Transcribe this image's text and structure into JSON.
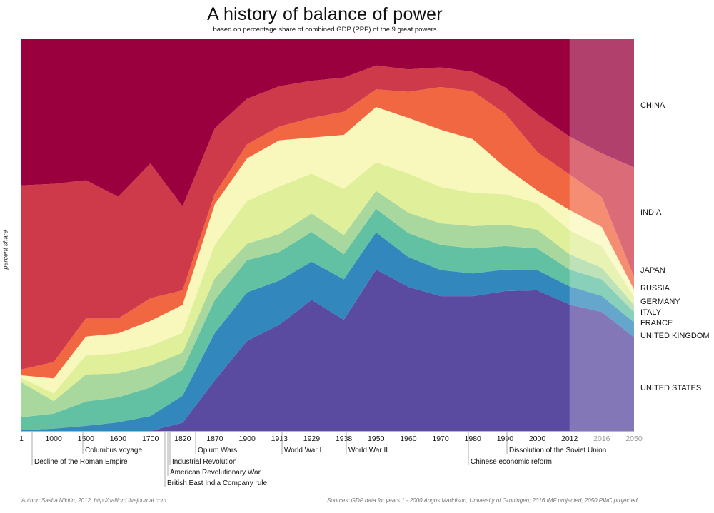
{
  "title": "A history of  balance of power",
  "subtitle": "based on percentage share of combined GDP (PPP) of the 9 great powers",
  "footer": {
    "author": "Author:  Sasha Nikitin, 2012, http://nalilord.livejournal.com",
    "sources": "Sources:  GDP data for years 1 - 2000 Angus Maddison, University of Groningen;  2016 IMF projected;  2050 PWC projected"
  },
  "chart_data": {
    "type": "area",
    "stacked": true,
    "normalized_percent": true,
    "title": "A history of  balance of power",
    "subtitle": "based on percentage share of combined GDP (PPP) of the 9 great powers",
    "xlabel": "",
    "ylabel": "percent share",
    "ylim": [
      0,
      100
    ],
    "grid": false,
    "legend": "right (labels beside each band)",
    "categories": [
      "1",
      "1000",
      "1500",
      "1600",
      "1700",
      "1820",
      "1870",
      "1900",
      "1913",
      "1929",
      "1938",
      "1950",
      "1960",
      "1970",
      "1980",
      "1990",
      "2000",
      "2012",
      "2016",
      "2050"
    ],
    "projected_categories": [
      "2016",
      "2050"
    ],
    "projected_shading_from": "2012",
    "series": [
      {
        "name": "UNITED STATES",
        "color": "#5a4aa0",
        "values": [
          0,
          0,
          0,
          0,
          0,
          2.1,
          12.9,
          23.0,
          27.1,
          33.5,
          28.4,
          41.2,
          36.8,
          34.4,
          34.4,
          35.7,
          35.9,
          32.3,
          30.4,
          23.9
        ]
      },
      {
        "name": "UNITED KINGDOM",
        "color": "#3288bd",
        "values": [
          0.2,
          0.6,
          1.3,
          2.2,
          3.8,
          6.9,
          12.1,
          12.4,
          11.3,
          9.7,
          10.3,
          9.5,
          7.6,
          6.7,
          5.8,
          5.5,
          5.2,
          4.6,
          4.1,
          3.8
        ]
      },
      {
        "name": "FRANCE",
        "color": "#62c0a3",
        "values": [
          3.3,
          3.8,
          6.2,
          6.4,
          7.3,
          6.6,
          8.5,
          8.2,
          7.3,
          7.6,
          6.4,
          6.0,
          6.1,
          6.4,
          6.4,
          6.0,
          5.5,
          4.3,
          4.2,
          2.7
        ]
      },
      {
        "name": "ITALY",
        "color": "#a9d89f",
        "values": [
          8.9,
          3.2,
          6.9,
          6.1,
          5.6,
          4.4,
          5.5,
          4.2,
          4.6,
          4.7,
          4.9,
          4.6,
          5.2,
          5.5,
          5.7,
          5.5,
          4.8,
          3.9,
          3.0,
          1.8
        ]
      },
      {
        "name": "GERMANY",
        "color": "#e0ef9a",
        "values": [
          1.1,
          2.0,
          4.9,
          5.1,
          5.0,
          5.1,
          8.6,
          10.9,
          12.1,
          10.2,
          11.8,
          7.3,
          10.0,
          9.3,
          8.5,
          7.7,
          6.7,
          6.1,
          5.5,
          2.1
        ]
      },
      {
        "name": "RUSSIA",
        "color": "#f8f8bc",
        "values": [
          0.7,
          3.8,
          4.8,
          5.1,
          6.4,
          7.1,
          10.3,
          10.9,
          11.8,
          9.2,
          13.8,
          14.1,
          14.2,
          14.6,
          13.7,
          6.9,
          3.3,
          5.2,
          4.9,
          1.8
        ]
      },
      {
        "name": "JAPAN",
        "color": "#f06742",
        "values": [
          1.5,
          4.2,
          4.6,
          3.8,
          5.8,
          3.7,
          2.7,
          3.6,
          3.5,
          5.0,
          5.9,
          4.5,
          6.7,
          10.9,
          12.2,
          13.7,
          9.8,
          9.1,
          7.6,
          3.3
        ]
      },
      {
        "name": "INDIA",
        "color": "#cf3a4a",
        "values": [
          47.0,
          45.5,
          35.3,
          31.1,
          34.4,
          21.4,
          16.7,
          11.6,
          10.3,
          9.5,
          8.7,
          6.1,
          5.7,
          5.0,
          5.0,
          6.7,
          9.7,
          9.7,
          11.2,
          27.9
        ]
      },
      {
        "name": "CHINA",
        "color": "#99003d",
        "values": [
          37.3,
          36.9,
          36.0,
          40.2,
          31.7,
          42.7,
          22.7,
          15.2,
          12.0,
          10.6,
          9.8,
          6.7,
          7.7,
          7.2,
          8.3,
          12.3,
          19.1,
          24.8,
          29.1,
          32.7
        ]
      }
    ],
    "events": [
      {
        "year_near": "1000",
        "label": "Decline of the Roman Empire"
      },
      {
        "year_near": "1500",
        "label": "Columbus voyage"
      },
      {
        "year_near": "1757",
        "label": "British East India Company rule"
      },
      {
        "year_near": "1776",
        "label": "American Revolutionary War"
      },
      {
        "year_near": "1800",
        "label": "Industrial Revolution"
      },
      {
        "year_near": "1840",
        "label": "Opium Wars"
      },
      {
        "year_near": "1914",
        "label": "World War I"
      },
      {
        "year_near": "1939",
        "label": "World War II"
      },
      {
        "year_near": "1978",
        "label": "Chinese economic reform"
      },
      {
        "year_near": "1991",
        "label": "Dissolution of the Soviet Union"
      }
    ]
  }
}
